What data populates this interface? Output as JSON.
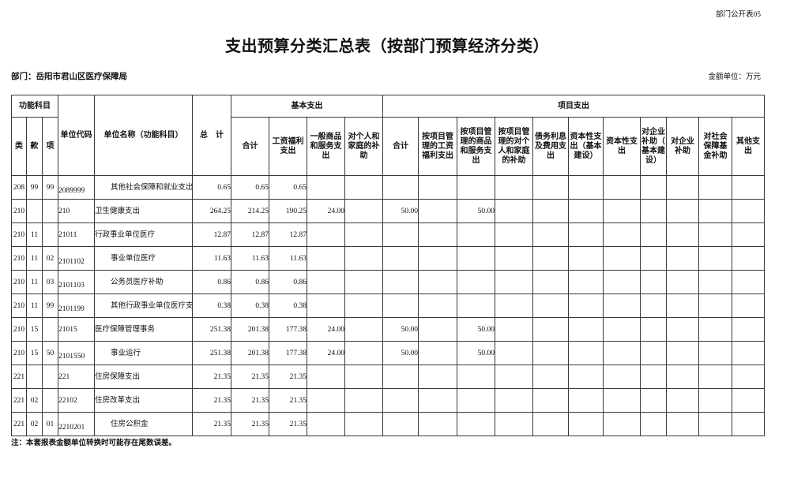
{
  "meta": {
    "sheet_label": "部门公开表05",
    "title": "支出预算分类汇总表（按部门预算经济分类）",
    "department_label": "部门：岳阳市君山区医疗保障局",
    "unit_label": "金额单位：万元",
    "note": "注：本套报表金额单位转换时可能存在尾数误差。"
  },
  "colors": {
    "border": "#383838",
    "text": "#111111",
    "background": "#ffffff"
  },
  "table": {
    "header": {
      "func_group": "功能科目",
      "cls": "类",
      "sec": "款",
      "item": "项",
      "unit_code": "单位代码",
      "unit_name": "单位名称（功能科目）",
      "total": "总　计",
      "basic_group": "基本支出",
      "basic_cols": [
        "合计",
        "工资福利支出",
        "一般商品和服务支出",
        "对个人和家庭的补助"
      ],
      "project_group": "项目支出",
      "project_cols": [
        "合计",
        "按项目管理的工资福利支出",
        "按项目管理的商品和服务支出",
        "按项目管理的对个人和家庭的补助",
        "债务利息及费用支出",
        "资本性支出（基本建设）",
        "资本性支出",
        "对企业补助（基本建设）",
        "对企业补助",
        "对社会保障基金补助",
        "其他支出"
      ]
    },
    "rows": [
      {
        "cls": "208",
        "sec": "99",
        "item": "99",
        "code": "2089999",
        "name": "其他社会保障和就业支出",
        "indent": true,
        "values": [
          "0.65",
          "0.65",
          "0.65",
          "",
          "",
          "",
          "",
          "",
          "",
          "",
          "",
          "",
          "",
          "",
          "",
          ""
        ]
      },
      {
        "cls": "210",
        "sec": "",
        "item": "",
        "code": "210",
        "name": "卫生健康支出",
        "indent": false,
        "values": [
          "264.25",
          "214.25",
          "190.25",
          "24.00",
          "",
          "50.00",
          "",
          "50.00",
          "",
          "",
          "",
          "",
          "",
          "",
          "",
          ""
        ]
      },
      {
        "cls": "210",
        "sec": "11",
        "item": "",
        "code": "21011",
        "name": "行政事业单位医疗",
        "indent": false,
        "values": [
          "12.87",
          "12.87",
          "12.87",
          "",
          "",
          "",
          "",
          "",
          "",
          "",
          "",
          "",
          "",
          "",
          "",
          ""
        ]
      },
      {
        "cls": "210",
        "sec": "11",
        "item": "02",
        "code": "2101102",
        "name": "事业单位医疗",
        "indent": true,
        "values": [
          "11.63",
          "11.63",
          "11.63",
          "",
          "",
          "",
          "",
          "",
          "",
          "",
          "",
          "",
          "",
          "",
          "",
          ""
        ]
      },
      {
        "cls": "210",
        "sec": "11",
        "item": "03",
        "code": "2101103",
        "name": "公务员医疗补助",
        "indent": true,
        "values": [
          "0.86",
          "0.86",
          "0.86",
          "",
          "",
          "",
          "",
          "",
          "",
          "",
          "",
          "",
          "",
          "",
          "",
          ""
        ]
      },
      {
        "cls": "210",
        "sec": "11",
        "item": "99",
        "code": "2101199",
        "name": "其他行政事业单位医疗支出",
        "indent": true,
        "values": [
          "0.38",
          "0.38",
          "0.38",
          "",
          "",
          "",
          "",
          "",
          "",
          "",
          "",
          "",
          "",
          "",
          "",
          ""
        ]
      },
      {
        "cls": "210",
        "sec": "15",
        "item": "",
        "code": "21015",
        "name": "医疗保障管理事务",
        "indent": false,
        "values": [
          "251.38",
          "201.38",
          "177.38",
          "24.00",
          "",
          "50.00",
          "",
          "50.00",
          "",
          "",
          "",
          "",
          "",
          "",
          "",
          ""
        ]
      },
      {
        "cls": "210",
        "sec": "15",
        "item": "50",
        "code": "2101550",
        "name": "事业运行",
        "indent": true,
        "values": [
          "251.38",
          "201.38",
          "177.38",
          "24.00",
          "",
          "50.00",
          "",
          "50.00",
          "",
          "",
          "",
          "",
          "",
          "",
          "",
          ""
        ]
      },
      {
        "cls": "221",
        "sec": "",
        "item": "",
        "code": "221",
        "name": "住房保障支出",
        "indent": false,
        "values": [
          "21.35",
          "21.35",
          "21.35",
          "",
          "",
          "",
          "",
          "",
          "",
          "",
          "",
          "",
          "",
          "",
          "",
          ""
        ]
      },
      {
        "cls": "221",
        "sec": "02",
        "item": "",
        "code": "22102",
        "name": "住房改革支出",
        "indent": false,
        "values": [
          "21.35",
          "21.35",
          "21.35",
          "",
          "",
          "",
          "",
          "",
          "",
          "",
          "",
          "",
          "",
          "",
          "",
          ""
        ]
      },
      {
        "cls": "221",
        "sec": "02",
        "item": "01",
        "code": "2210201",
        "name": "住房公积金",
        "indent": true,
        "values": [
          "21.35",
          "21.35",
          "21.35",
          "",
          "",
          "",
          "",
          "",
          "",
          "",
          "",
          "",
          "",
          "",
          "",
          ""
        ]
      }
    ]
  }
}
